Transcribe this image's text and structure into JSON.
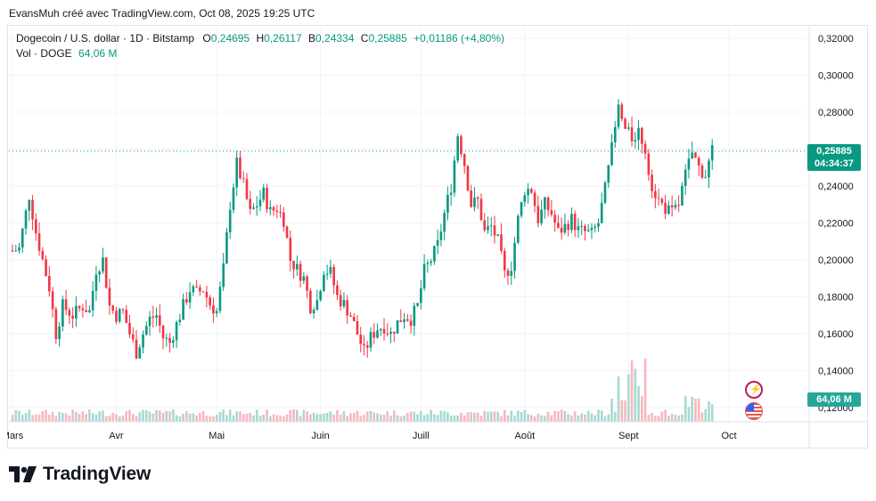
{
  "caption": "EvansMuh créé avec TradingView.com, Oct 08, 2025 19:25 UTC",
  "legend": {
    "symbol": "Dogecoin / U.S. dollar · 1D · Bitstamp",
    "open_label": "O",
    "open_value": "0,24695",
    "high_label": "H",
    "high_value": "0,26117",
    "low_label": "B",
    "low_value": "0,24334",
    "close_label": "C",
    "close_value": "0,25885",
    "change": "+0,01186 (+4,80%)",
    "vol_label": "Vol · DOGE",
    "vol_value": "64,06 M"
  },
  "price_tag": {
    "price": "0,25885",
    "countdown": "04:34:37"
  },
  "volume_tag": "64,06 M",
  "brand": "TradingView",
  "colors": {
    "up": "#089981",
    "down": "#f23645",
    "vol_up": "#a8d9d3",
    "vol_down": "#f7b8bd",
    "grid": "#f0f3fa"
  },
  "chart_data": {
    "type": "candlestick",
    "title": "Dogecoin / U.S. dollar · 1D · Bitstamp",
    "y_ticks": [
      "0,32000",
      "0,30000",
      "0,28000",
      "0,26000",
      "0,24000",
      "0,22000",
      "0,20000",
      "0,18000",
      "0,16000",
      "0,14000",
      "0,12000"
    ],
    "y_tick_values": [
      0.32,
      0.3,
      0.28,
      0.26,
      0.24,
      0.22,
      0.2,
      0.18,
      0.16,
      0.14,
      0.12
    ],
    "x_labels": [
      "Mars",
      "Avr",
      "Mai",
      "Juin",
      "Juill",
      "Août",
      "Sept",
      "Oct"
    ],
    "x_label_days": [
      0,
      31,
      61,
      92,
      122,
      153,
      184,
      214
    ],
    "last_price": 0.25885,
    "close_series": [
      [
        0,
        0.205
      ],
      [
        2,
        0.206
      ],
      [
        5,
        0.235
      ],
      [
        7,
        0.215
      ],
      [
        9,
        0.2
      ],
      [
        11,
        0.185
      ],
      [
        13,
        0.16
      ],
      [
        15,
        0.175
      ],
      [
        18,
        0.17
      ],
      [
        21,
        0.175
      ],
      [
        23,
        0.172
      ],
      [
        25,
        0.195
      ],
      [
        27,
        0.2
      ],
      [
        29,
        0.175
      ],
      [
        31,
        0.17
      ],
      [
        33,
        0.172
      ],
      [
        35,
        0.16
      ],
      [
        37,
        0.15
      ],
      [
        39,
        0.16
      ],
      [
        41,
        0.168
      ],
      [
        43,
        0.17
      ],
      [
        45,
        0.158
      ],
      [
        47,
        0.155
      ],
      [
        49,
        0.165
      ],
      [
        51,
        0.175
      ],
      [
        53,
        0.184
      ],
      [
        55,
        0.182
      ],
      [
        57,
        0.184
      ],
      [
        59,
        0.176
      ],
      [
        61,
        0.172
      ],
      [
        63,
        0.195
      ],
      [
        65,
        0.23
      ],
      [
        67,
        0.252
      ],
      [
        69,
        0.24
      ],
      [
        71,
        0.225
      ],
      [
        73,
        0.23
      ],
      [
        75,
        0.236
      ],
      [
        77,
        0.226
      ],
      [
        79,
        0.228
      ],
      [
        81,
        0.222
      ],
      [
        83,
        0.2
      ],
      [
        85,
        0.195
      ],
      [
        87,
        0.19
      ],
      [
        89,
        0.175
      ],
      [
        91,
        0.178
      ],
      [
        93,
        0.195
      ],
      [
        95,
        0.193
      ],
      [
        97,
        0.18
      ],
      [
        99,
        0.176
      ],
      [
        101,
        0.17
      ],
      [
        103,
        0.16
      ],
      [
        105,
        0.15
      ],
      [
        107,
        0.158
      ],
      [
        109,
        0.163
      ],
      [
        111,
        0.164
      ],
      [
        113,
        0.16
      ],
      [
        115,
        0.166
      ],
      [
        117,
        0.17
      ],
      [
        119,
        0.168
      ],
      [
        121,
        0.175
      ],
      [
        123,
        0.194
      ],
      [
        125,
        0.2
      ],
      [
        127,
        0.208
      ],
      [
        129,
        0.225
      ],
      [
        131,
        0.24
      ],
      [
        133,
        0.268
      ],
      [
        135,
        0.252
      ],
      [
        137,
        0.23
      ],
      [
        139,
        0.232
      ],
      [
        141,
        0.215
      ],
      [
        143,
        0.218
      ],
      [
        145,
        0.21
      ],
      [
        147,
        0.192
      ],
      [
        149,
        0.197
      ],
      [
        151,
        0.222
      ],
      [
        153,
        0.238
      ],
      [
        155,
        0.238
      ],
      [
        157,
        0.222
      ],
      [
        159,
        0.23
      ],
      [
        161,
        0.225
      ],
      [
        163,
        0.215
      ],
      [
        165,
        0.218
      ],
      [
        167,
        0.222
      ],
      [
        169,
        0.216
      ],
      [
        171,
        0.215
      ],
      [
        173,
        0.214
      ],
      [
        175,
        0.22
      ],
      [
        177,
        0.238
      ],
      [
        179,
        0.26
      ],
      [
        181,
        0.282
      ],
      [
        183,
        0.27
      ],
      [
        185,
        0.266
      ],
      [
        187,
        0.27
      ],
      [
        189,
        0.26
      ],
      [
        191,
        0.24
      ],
      [
        193,
        0.232
      ],
      [
        195,
        0.228
      ],
      [
        197,
        0.225
      ],
      [
        199,
        0.23
      ],
      [
        201,
        0.246
      ],
      [
        203,
        0.258
      ],
      [
        205,
        0.25
      ],
      [
        207,
        0.246
      ],
      [
        209,
        0.25885
      ]
    ]
  }
}
